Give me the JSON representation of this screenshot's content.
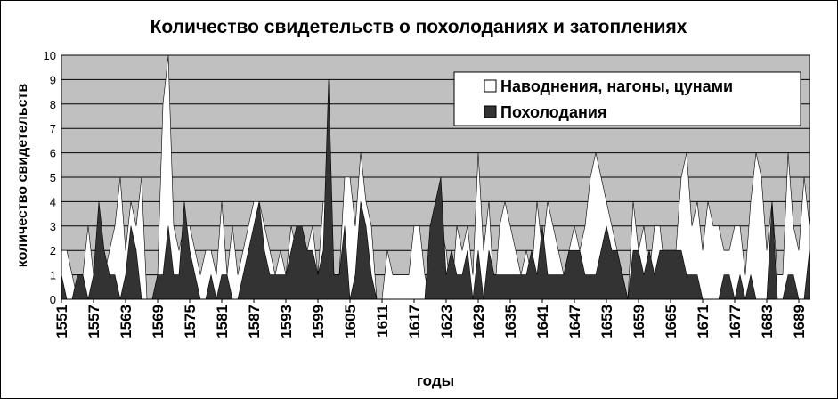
{
  "chart_data": {
    "type": "area",
    "title": "Количество свидетельств о похолоданиях и затоплениях",
    "xlabel": "годы",
    "ylabel": "количество свидетельств",
    "ylim": [
      0,
      10
    ],
    "yticks": [
      0,
      1,
      2,
      3,
      4,
      5,
      6,
      7,
      8,
      9,
      10
    ],
    "xlim": [
      1551,
      1691
    ],
    "xticks": [
      1551,
      1557,
      1563,
      1569,
      1575,
      1581,
      1587,
      1593,
      1599,
      1605,
      1611,
      1617,
      1623,
      1629,
      1635,
      1641,
      1647,
      1653,
      1659,
      1665,
      1671,
      1677,
      1683,
      1689
    ],
    "grid": true,
    "legend_position": "top-right",
    "colors": {
      "plot_background": "#c0c0c0",
      "floods": "#ffffff",
      "cooling": "#333333",
      "outline": "#000000"
    },
    "series": [
      {
        "name": "Наводнения, нагоны, цунами",
        "color": "#ffffff",
        "x": [
          1551,
          1552,
          1553,
          1554,
          1555,
          1556,
          1557,
          1558,
          1559,
          1560,
          1561,
          1562,
          1563,
          1564,
          1565,
          1566,
          1567,
          1568,
          1569,
          1570,
          1571,
          1572,
          1573,
          1574,
          1575,
          1576,
          1577,
          1578,
          1579,
          1580,
          1581,
          1582,
          1583,
          1584,
          1585,
          1586,
          1587,
          1588,
          1589,
          1590,
          1591,
          1592,
          1593,
          1594,
          1595,
          1596,
          1597,
          1598,
          1599,
          1600,
          1601,
          1602,
          1603,
          1604,
          1605,
          1606,
          1607,
          1608,
          1609,
          1610,
          1611,
          1612,
          1613,
          1614,
          1615,
          1616,
          1617,
          1618,
          1619,
          1620,
          1621,
          1622,
          1623,
          1624,
          1625,
          1626,
          1627,
          1628,
          1629,
          1630,
          1631,
          1632,
          1633,
          1634,
          1635,
          1636,
          1637,
          1638,
          1639,
          1640,
          1641,
          1642,
          1643,
          1644,
          1645,
          1646,
          1647,
          1648,
          1649,
          1650,
          1651,
          1652,
          1653,
          1654,
          1655,
          1656,
          1657,
          1658,
          1659,
          1660,
          1661,
          1662,
          1663,
          1664,
          1665,
          1666,
          1667,
          1668,
          1669,
          1670,
          1671,
          1672,
          1673,
          1674,
          1675,
          1676,
          1677,
          1678,
          1679,
          1680,
          1681,
          1682,
          1683,
          1684,
          1685,
          1686,
          1687,
          1688,
          1689,
          1690,
          1691
        ],
        "values": [
          2,
          2,
          1,
          0,
          1,
          3,
          1,
          3,
          1,
          2,
          3,
          5,
          2,
          4,
          3,
          5,
          0,
          0,
          1,
          8,
          10,
          3,
          2,
          3,
          3,
          2,
          1,
          2,
          2,
          1,
          4,
          1,
          3,
          1,
          2,
          3,
          4,
          4,
          3,
          2,
          1,
          2,
          1,
          3,
          2,
          1,
          2,
          3,
          1,
          4,
          4,
          1,
          1,
          5,
          5,
          3,
          6,
          4,
          3,
          0,
          0,
          2,
          1,
          1,
          1,
          1,
          3,
          3,
          1,
          0,
          2,
          3,
          2,
          0,
          3,
          2,
          3,
          1,
          6,
          2,
          4,
          0,
          3,
          4,
          3,
          2,
          1,
          2,
          1,
          4,
          2,
          4,
          3,
          2,
          1,
          2,
          3,
          2,
          3,
          5,
          6,
          5,
          4,
          3,
          2,
          1,
          0,
          4,
          2,
          3,
          1,
          3,
          3,
          1,
          1,
          2,
          5,
          6,
          3,
          4,
          2,
          4,
          3,
          3,
          2,
          2,
          3,
          3,
          1,
          4,
          6,
          5,
          2,
          4,
          1,
          1,
          6,
          3,
          2,
          5,
          3
        ]
      },
      {
        "name": "Похолодания",
        "color": "#333333",
        "x": [
          1551,
          1552,
          1553,
          1554,
          1555,
          1556,
          1557,
          1558,
          1559,
          1560,
          1561,
          1562,
          1563,
          1564,
          1565,
          1566,
          1567,
          1568,
          1569,
          1570,
          1571,
          1572,
          1573,
          1574,
          1575,
          1576,
          1577,
          1578,
          1579,
          1580,
          1581,
          1582,
          1583,
          1584,
          1585,
          1586,
          1587,
          1588,
          1589,
          1590,
          1591,
          1592,
          1593,
          1594,
          1595,
          1596,
          1597,
          1598,
          1599,
          1600,
          1601,
          1602,
          1603,
          1604,
          1605,
          1606,
          1607,
          1608,
          1609,
          1610,
          1611,
          1612,
          1613,
          1614,
          1615,
          1616,
          1617,
          1618,
          1619,
          1620,
          1621,
          1622,
          1623,
          1624,
          1625,
          1626,
          1627,
          1628,
          1629,
          1630,
          1631,
          1632,
          1633,
          1634,
          1635,
          1636,
          1637,
          1638,
          1639,
          1640,
          1641,
          1642,
          1643,
          1644,
          1645,
          1646,
          1647,
          1648,
          1649,
          1650,
          1651,
          1652,
          1653,
          1654,
          1655,
          1656,
          1657,
          1658,
          1659,
          1660,
          1661,
          1662,
          1663,
          1664,
          1665,
          1666,
          1667,
          1668,
          1669,
          1670,
          1671,
          1672,
          1673,
          1674,
          1675,
          1676,
          1677,
          1678,
          1679,
          1680,
          1681,
          1682,
          1683,
          1684,
          1685,
          1686,
          1687,
          1688,
          1689,
          1690,
          1691
        ],
        "values": [
          1,
          0,
          0,
          1,
          1,
          0,
          1,
          4,
          2,
          1,
          1,
          0,
          1,
          3,
          2,
          0,
          0,
          0,
          1,
          1,
          3,
          1,
          1,
          4,
          2,
          1,
          0,
          0,
          1,
          0,
          1,
          1,
          0,
          0,
          1,
          2,
          3,
          4,
          2,
          1,
          1,
          1,
          1,
          2,
          3,
          3,
          2,
          2,
          1,
          2,
          9,
          1,
          1,
          3,
          0,
          1,
          4,
          3,
          1,
          0,
          0,
          0,
          0,
          0,
          0,
          0,
          0,
          0,
          0,
          3,
          4,
          5,
          1,
          2,
          1,
          1,
          2,
          0,
          2,
          0,
          2,
          1,
          1,
          1,
          1,
          1,
          1,
          1,
          2,
          1,
          3,
          1,
          1,
          1,
          1,
          2,
          2,
          2,
          1,
          1,
          1,
          2,
          3,
          2,
          2,
          1,
          0,
          2,
          2,
          1,
          2,
          1,
          2,
          2,
          2,
          2,
          2,
          1,
          1,
          1,
          0,
          0,
          0,
          0,
          1,
          1,
          0,
          1,
          0,
          1,
          0,
          0,
          0,
          4,
          0,
          0,
          1,
          1,
          0,
          0,
          2
        ]
      }
    ]
  }
}
